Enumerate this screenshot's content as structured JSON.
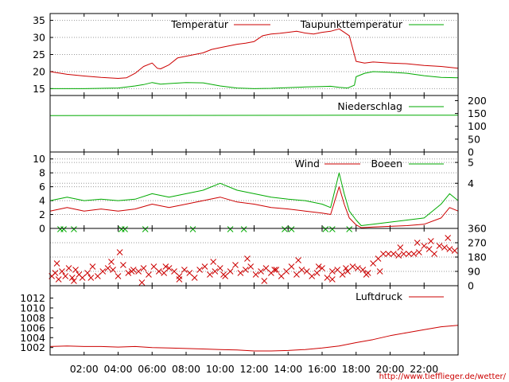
{
  "chart_data": {
    "type": "line",
    "x_ticks": [
      "02:00",
      "04:00",
      "06:00",
      "08:00",
      "10:00",
      "12:00",
      "14:00",
      "16:00",
      "18:00",
      "20:00",
      "22:00"
    ],
    "x_range_hours": [
      0,
      24
    ],
    "source_link": "http://www.tiefflieger.de/wetter/",
    "colors": {
      "red": "#cc0000",
      "green": "#00aa00",
      "axis": "#000000",
      "grid": "#9a9a9a"
    },
    "panels": [
      {
        "id": "temperature",
        "ylim": [
          13,
          37
        ],
        "left_ticks": [
          "15",
          "20",
          "25",
          "30",
          "35"
        ],
        "left_tick_values": [
          15,
          20,
          25,
          30,
          35
        ],
        "right_ticks": [],
        "right_tick_values": [],
        "grid": true,
        "series": [
          {
            "name": "Temperatur",
            "color": "#cc0000",
            "style": "line",
            "x": [
              0,
              1,
              2,
              3,
              4,
              4.5,
              5,
              5.5,
              6,
              6.3,
              6.5,
              7,
              7.5,
              8,
              8.5,
              9,
              9.5,
              10,
              10.5,
              11,
              11.5,
              12,
              12.5,
              13,
              13.5,
              14,
              14.5,
              15,
              15.5,
              16,
              16.5,
              17,
              17.3,
              17.6,
              18,
              18.5,
              19,
              20,
              21,
              22,
              23,
              24
            ],
            "y": [
              20,
              19.2,
              18.7,
              18.3,
              18,
              18.2,
              19.5,
              21.5,
              22.5,
              21,
              20.8,
              22,
              24,
              24.5,
              25,
              25.5,
              26.5,
              27,
              27.5,
              28,
              28.3,
              28.8,
              30.5,
              31,
              31.2,
              31.5,
              31.8,
              31.3,
              31,
              31.5,
              31.8,
              32.5,
              31.5,
              30.5,
              23,
              22.5,
              22.8,
              22.5,
              22.3,
              21.8,
              21.5,
              21
            ]
          },
          {
            "name": "Taupunkttemperatur",
            "color": "#00aa00",
            "style": "line",
            "x": [
              0,
              2,
              4,
              5,
              5.5,
              6,
              6.5,
              7,
              8,
              9,
              10,
              11,
              12,
              13,
              14,
              15,
              16,
              16.5,
              17,
              17.5,
              17.9,
              18,
              18.5,
              19,
              20,
              21,
              22,
              23,
              24
            ],
            "y": [
              15,
              15,
              15.2,
              15.8,
              16.2,
              16.8,
              16.3,
              16.5,
              16.8,
              16.7,
              15.8,
              15.2,
              15,
              15.1,
              15.3,
              15.5,
              15.6,
              15.7,
              15.4,
              15.2,
              16,
              18.5,
              19.5,
              20,
              19.8,
              19.5,
              18.8,
              18.3,
              18.2
            ]
          }
        ]
      },
      {
        "id": "precipitation",
        "ylim": [
          0,
          220
        ],
        "left_ticks": [],
        "left_tick_values": [],
        "right_ticks": [
          "0",
          "50",
          "100",
          "150",
          "200"
        ],
        "right_tick_values": [
          0,
          50,
          100,
          150,
          200
        ],
        "grid": false,
        "series": [
          {
            "name": "Niederschlag",
            "color": "#00aa00",
            "style": "line",
            "x": [
              0,
              18,
              24
            ],
            "y": [
              142,
              143,
              143
            ]
          }
        ]
      },
      {
        "id": "wind",
        "ylim": [
          0,
          11
        ],
        "left_ticks": [
          "0",
          "2",
          "4",
          "6",
          "8",
          "10"
        ],
        "left_tick_values": [
          0,
          2,
          4,
          6,
          8,
          10
        ],
        "right_ticks": [
          "4",
          "5"
        ],
        "right_tick_values": [
          6.5,
          9.5
        ],
        "grid": true,
        "series": [
          {
            "name": "Wind",
            "color": "#cc0000",
            "style": "line",
            "x": [
              0,
              1,
              2,
              3,
              4,
              5,
              6,
              7,
              8,
              9,
              10,
              11,
              12,
              13,
              14,
              15,
              16,
              16.5,
              17,
              17.3,
              17.6,
              18,
              18.3,
              19,
              20,
              21,
              22,
              23,
              23.5,
              24
            ],
            "y": [
              2.5,
              3,
              2.5,
              2.8,
              2.5,
              2.8,
              3.5,
              3,
              3.5,
              4,
              4.5,
              3.8,
              3.5,
              3,
              2.8,
              2.5,
              2.2,
              2,
              6,
              3.5,
              1.5,
              0.5,
              0.1,
              0.2,
              0.3,
              0.4,
              0.6,
              1.5,
              3,
              2.5
            ]
          },
          {
            "name": "Boeen",
            "color": "#00aa00",
            "style": "line",
            "x": [
              0,
              1,
              2,
              3,
              4,
              5,
              6,
              7,
              8,
              9,
              10,
              11,
              12,
              13,
              14,
              15,
              16,
              16.5,
              17,
              17.3,
              17.6,
              18,
              18.3,
              19,
              20,
              21,
              22,
              23,
              23.5,
              24
            ],
            "y": [
              4,
              4.5,
              4,
              4.2,
              4,
              4.2,
              5,
              4.5,
              5,
              5.5,
              6.5,
              5.5,
              5,
              4.5,
              4.2,
              4,
              3.5,
              3,
              8,
              5,
              2.5,
              1.2,
              0.4,
              0.6,
              0.9,
              1.2,
              1.5,
              3.5,
              5,
              4
            ]
          }
        ]
      },
      {
        "id": "wind-direction",
        "ylim": [
          0,
          360
        ],
        "left_ticks": [],
        "left_tick_values": [],
        "right_ticks": [
          "0",
          "90",
          "180",
          "270",
          "360"
        ],
        "right_tick_values": [
          0,
          90,
          180,
          270,
          360
        ],
        "grid": true,
        "series": [
          {
            "name": "",
            "color": "#cc0000",
            "style": "markers",
            "x": [
              0.1,
              0.3,
              0.5,
              0.7,
              0.9,
              1.1,
              1.3,
              1.5,
              1.7,
              1.9,
              2.2,
              2.5,
              2.8,
              3.1,
              3.4,
              3.7,
              4,
              4.3,
              4.6,
              4.9,
              5.2,
              5.5,
              5.8,
              6.1,
              6.4,
              6.7,
              7,
              7.3,
              7.6,
              7.9,
              8.2,
              8.5,
              8.8,
              9.1,
              9.4,
              9.7,
              10,
              10.3,
              10.6,
              10.9,
              11.2,
              11.5,
              11.8,
              12.1,
              12.4,
              12.7,
              13,
              13.3,
              13.6,
              13.9,
              14.2,
              14.5,
              14.8,
              15.1,
              15.4,
              15.7,
              16,
              16.3,
              16.6,
              16.9,
              17.2,
              17.5,
              17.8,
              18.1,
              18.4,
              18.7,
              19,
              19.3,
              19.6,
              19.9,
              20.2,
              20.5,
              20.8,
              21.1,
              21.4,
              21.7,
              22,
              22.3,
              22.6,
              22.9,
              23.2,
              23.5,
              23.8,
              0.4,
              1.4,
              2.4,
              3.6,
              4.1,
              4.8,
              5.4,
              6.8,
              7.6,
              9.6,
              10.2,
              11.6,
              12.6,
              13.2,
              14.6,
              15.8,
              16.6,
              17.4,
              18.6,
              19.4,
              20.6,
              21.6,
              22.4,
              23.4
            ],
            "y": [
              60,
              80,
              40,
              90,
              60,
              110,
              50,
              100,
              70,
              50,
              80,
              120,
              60,
              90,
              110,
              100,
              60,
              130,
              80,
              100,
              90,
              110,
              70,
              120,
              90,
              80,
              110,
              90,
              60,
              100,
              80,
              50,
              100,
              120,
              70,
              90,
              110,
              60,
              90,
              130,
              80,
              100,
              120,
              70,
              90,
              110,
              80,
              100,
              60,
              90,
              120,
              70,
              100,
              90,
              60,
              80,
              110,
              50,
              90,
              100,
              70,
              90,
              120,
              110,
              100,
              80,
              140,
              170,
              200,
              200,
              200,
              190,
              200,
              200,
              200,
              210,
              250,
              230,
              200,
              250,
              240,
              230,
              220,
              140,
              30,
              50,
              150,
              210,
              90,
              20,
              120,
              40,
              150,
              70,
              170,
              30,
              100,
              160,
              120,
              40,
              110,
              70,
              90,
              240,
              270,
              280,
              300
            ]
          },
          {
            "name": "",
            "color": "#00aa00",
            "style": "markers",
            "x": [
              0.6,
              0.8,
              1.4,
              4.2,
              4.4,
              5.6,
              8.4,
              10.6,
              11.4,
              13.8,
              14.2,
              16.2,
              16.6,
              17.6
            ],
            "y": [
              355,
              355,
              355,
              355,
              355,
              355,
              355,
              355,
              355,
              355,
              355,
              355,
              355,
              355
            ]
          }
        ]
      },
      {
        "id": "pressure",
        "ylim": [
          1000.5,
          1014.5
        ],
        "left_ticks": [
          "1002",
          "1004",
          "1006",
          "1008",
          "1010",
          "1012"
        ],
        "left_tick_values": [
          1002,
          1004,
          1006,
          1008,
          1010,
          1012
        ],
        "right_ticks": [],
        "right_tick_values": [],
        "grid": false,
        "series": [
          {
            "name": "Luftdruck",
            "color": "#cc0000",
            "style": "line",
            "x": [
              0,
              1,
              2,
              3,
              4,
              5,
              6,
              7,
              8,
              9,
              10,
              11,
              12,
              13,
              14,
              15,
              16,
              17,
              18,
              19,
              20,
              21,
              22,
              23,
              24
            ],
            "y": [
              1002.2,
              1002.3,
              1002.2,
              1002.2,
              1002.1,
              1002.2,
              1002,
              1001.9,
              1001.8,
              1001.7,
              1001.6,
              1001.5,
              1001.3,
              1001.3,
              1001.4,
              1001.6,
              1001.9,
              1002.3,
              1003,
              1003.6,
              1004.4,
              1005,
              1005.6,
              1006.2,
              1006.5
            ]
          }
        ]
      }
    ]
  }
}
